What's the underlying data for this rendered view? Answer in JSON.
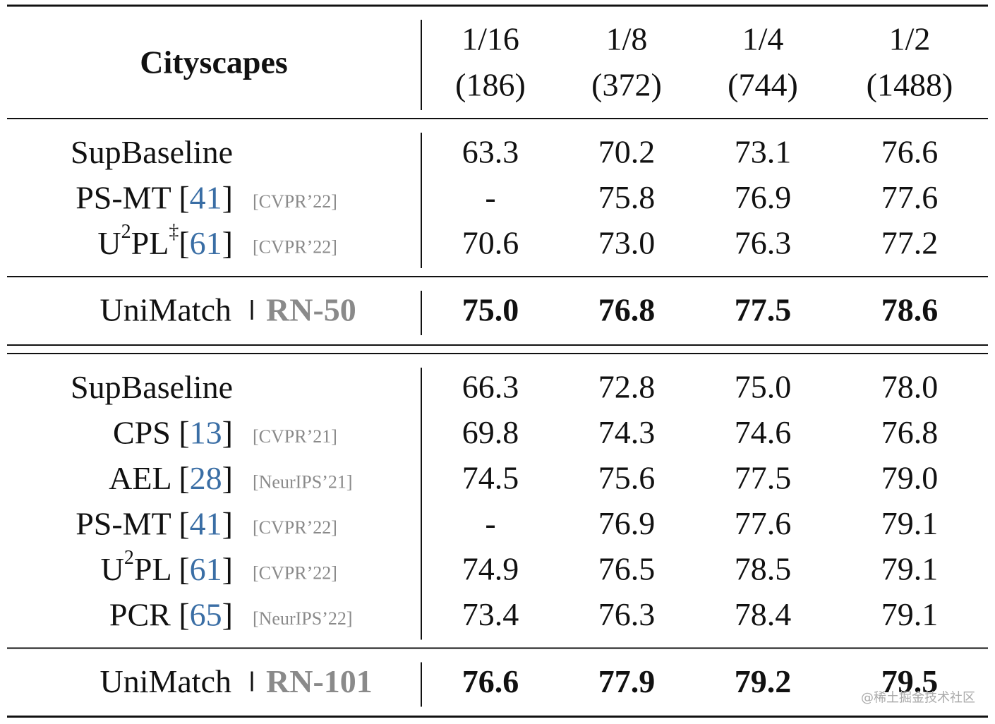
{
  "header": {
    "title": "Cityscapes",
    "columns": [
      {
        "fraction": "1/16",
        "count": "(186)"
      },
      {
        "fraction": "1/8",
        "count": "(372)"
      },
      {
        "fraction": "1/4",
        "count": "(744)"
      },
      {
        "fraction": "1/2",
        "count": "(1488)"
      }
    ]
  },
  "groups": [
    {
      "rows": [
        {
          "name": [
            {
              "text": "SupBaseline"
            }
          ],
          "values": [
            "63.3",
            "70.2",
            "73.1",
            "76.6"
          ]
        },
        {
          "name": [
            {
              "text": "PS-MT "
            }
          ],
          "cite": [
            "[",
            "41",
            "]"
          ],
          "venue": "[CVPR’22]",
          "values": [
            "-",
            "75.8",
            "76.9",
            "77.6"
          ]
        },
        {
          "name": [
            {
              "text": "U"
            },
            {
              "sup": "2"
            },
            {
              "text": "PL"
            },
            {
              "sup": "‡"
            }
          ],
          "cite": [
            "[",
            "61",
            "]"
          ],
          "venue": "[CVPR’22]",
          "values": [
            "70.6",
            "73.0",
            "76.3",
            "77.2"
          ]
        }
      ],
      "result": {
        "name": "UniMatch",
        "backbone": "RN-50",
        "values": [
          "75.0",
          "76.8",
          "77.5",
          "78.6"
        ]
      }
    },
    {
      "rows": [
        {
          "name": [
            {
              "text": "SupBaseline"
            }
          ],
          "values": [
            "66.3",
            "72.8",
            "75.0",
            "78.0"
          ]
        },
        {
          "name": [
            {
              "text": "CPS "
            }
          ],
          "cite": [
            "[",
            "13",
            "]"
          ],
          "venue": "[CVPR’21]",
          "values": [
            "69.8",
            "74.3",
            "74.6",
            "76.8"
          ]
        },
        {
          "name": [
            {
              "text": "AEL "
            }
          ],
          "cite": [
            "[",
            "28",
            "]"
          ],
          "venue": "[NeurIPS’21]",
          "values": [
            "74.5",
            "75.6",
            "77.5",
            "79.0"
          ]
        },
        {
          "name": [
            {
              "text": "PS-MT "
            }
          ],
          "cite": [
            "[",
            "41",
            "]"
          ],
          "venue": "[CVPR’22]",
          "values": [
            "-",
            "76.9",
            "77.6",
            "79.1"
          ]
        },
        {
          "name": [
            {
              "text": "U"
            },
            {
              "sup": "2"
            },
            {
              "text": "PL "
            }
          ],
          "cite": [
            "[",
            "61",
            "]"
          ],
          "venue": "[CVPR’22]",
          "values": [
            "74.9",
            "76.5",
            "78.5",
            "79.1"
          ]
        },
        {
          "name": [
            {
              "text": "PCR "
            }
          ],
          "cite": [
            "[",
            "65",
            "]"
          ],
          "venue": "[NeurIPS’22]",
          "values": [
            "73.4",
            "76.3",
            "78.4",
            "79.1"
          ]
        }
      ],
      "result": {
        "name": "UniMatch",
        "backbone": "RN-101",
        "values": [
          "76.6",
          "77.9",
          "79.2",
          "79.5"
        ]
      }
    }
  ],
  "watermark": "@稀土掘金技术社区"
}
